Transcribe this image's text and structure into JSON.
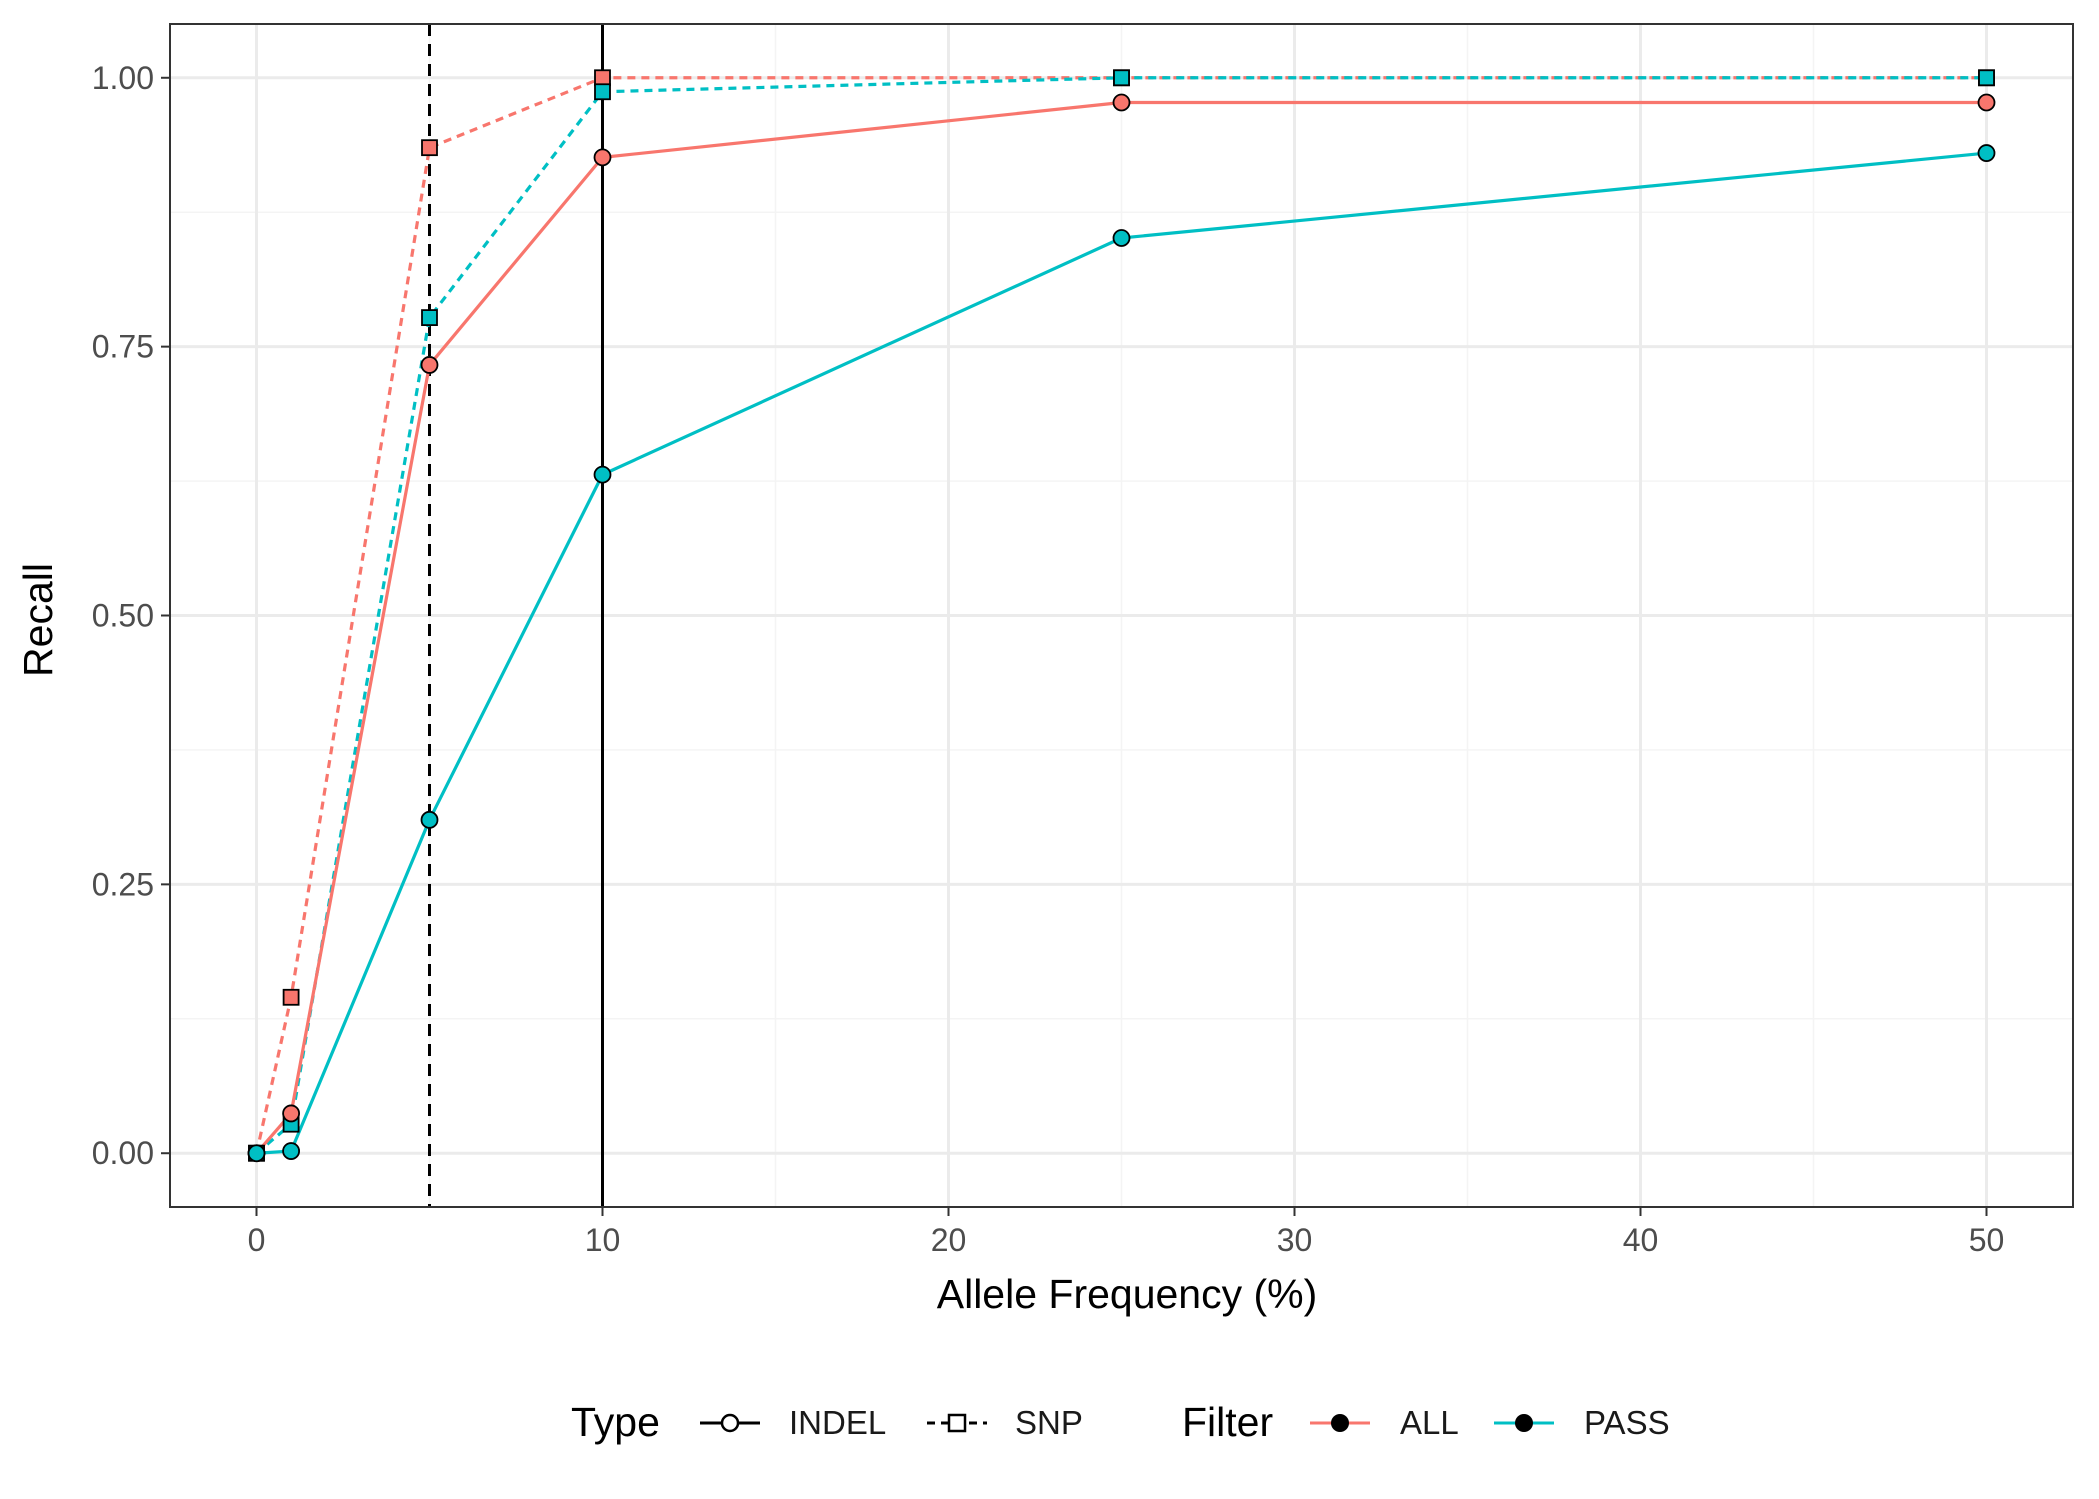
{
  "chart_data": {
    "type": "line",
    "xlabel": "Allele Frequency (%)",
    "ylabel": "Recall",
    "xlim": [
      -2.5,
      52.5
    ],
    "ylim": [
      -0.05,
      1.05
    ],
    "x_ticks": [
      0,
      10,
      20,
      30,
      40,
      50
    ],
    "y_ticks": [
      0.0,
      0.25,
      0.5,
      0.75,
      1.0
    ],
    "x_tick_labels": [
      "0",
      "10",
      "20",
      "30",
      "40",
      "50"
    ],
    "y_tick_labels": [
      "0.00",
      "0.25",
      "0.50",
      "0.75",
      "1.00"
    ],
    "grid": true,
    "vlines": [
      {
        "x": 5,
        "style": "dashed"
      },
      {
        "x": 10,
        "style": "solid"
      }
    ],
    "series": [
      {
        "type": "SNP",
        "filter": "ALL",
        "x": [
          0,
          1,
          5,
          10,
          25,
          50
        ],
        "values": [
          0.0,
          0.145,
          0.935,
          1.0,
          1.0,
          1.0
        ]
      },
      {
        "type": "SNP",
        "filter": "PASS",
        "x": [
          0,
          1,
          5,
          10,
          25,
          50
        ],
        "values": [
          0.0,
          0.027,
          0.777,
          0.987,
          1.0,
          1.0
        ]
      },
      {
        "type": "INDEL",
        "filter": "ALL",
        "x": [
          0,
          1,
          5,
          10,
          25,
          50
        ],
        "values": [
          0.0,
          0.037,
          0.733,
          0.926,
          0.977,
          0.977
        ]
      },
      {
        "type": "INDEL",
        "filter": "PASS",
        "x": [
          0,
          1,
          5,
          10,
          25,
          50
        ],
        "values": [
          0.0,
          0.002,
          0.31,
          0.631,
          0.851,
          0.93
        ]
      }
    ],
    "legend": {
      "placement": "bottom",
      "type_title": "Type",
      "type_items": [
        "INDEL",
        "SNP"
      ],
      "filter_title": "Filter",
      "filter_items": [
        "ALL",
        "PASS"
      ]
    },
    "colors": {
      "ALL": "#F8766D",
      "PASS": "#00BFC4",
      "axis": "#333333",
      "grid_major": "#EBEBEB",
      "grid_minor": "#F4F4F4"
    }
  }
}
